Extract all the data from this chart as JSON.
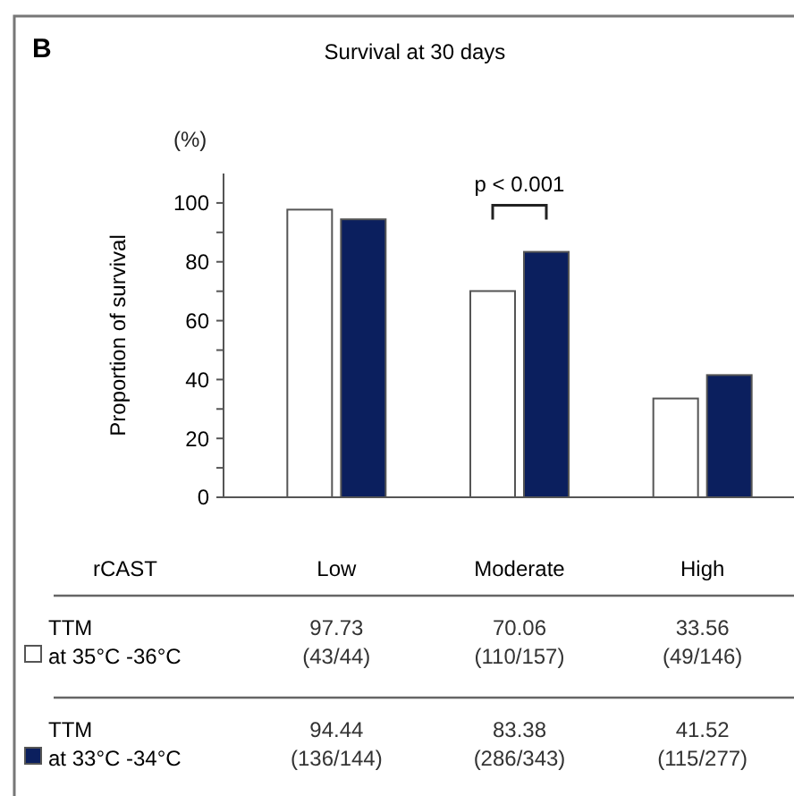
{
  "chart_data": {
    "type": "bar",
    "title": "Survival at 30 days",
    "ylabel": "Proportion of survival",
    "xlabel": "rCAST",
    "annotations": [
      "B",
      "(%)",
      "p < 0.001"
    ],
    "categories": [
      "Low",
      "Moderate",
      "High"
    ],
    "series": [
      {
        "name": "TTM at 35°C -36°C",
        "color": "#ffffff",
        "values": [
          97.73,
          70.06,
          33.56
        ],
        "value_labels": [
          "97.73 (43/44)",
          "70.06 (110/157)",
          "33.56 (49/146)"
        ]
      },
      {
        "name": "TTM at 33°C -34°C",
        "color": "#0b1f5e",
        "values": [
          94.44,
          83.38,
          41.52
        ],
        "value_labels": [
          "94.44 (136/144)",
          "83.38 (286/343)",
          "41.52 (115/277)"
        ]
      }
    ],
    "ylim": [
      0,
      110
    ],
    "yticks": [
      0,
      {
        "value": 10,
        "label": null
      },
      20,
      {
        "value": 30,
        "label": null
      },
      40,
      {
        "value": 50,
        "label": null
      },
      60,
      {
        "value": 70,
        "label": null
      },
      80,
      {
        "value": 90,
        "label": null
      },
      100
    ],
    "data_labels": true,
    "legend": "bottom"
  }
}
